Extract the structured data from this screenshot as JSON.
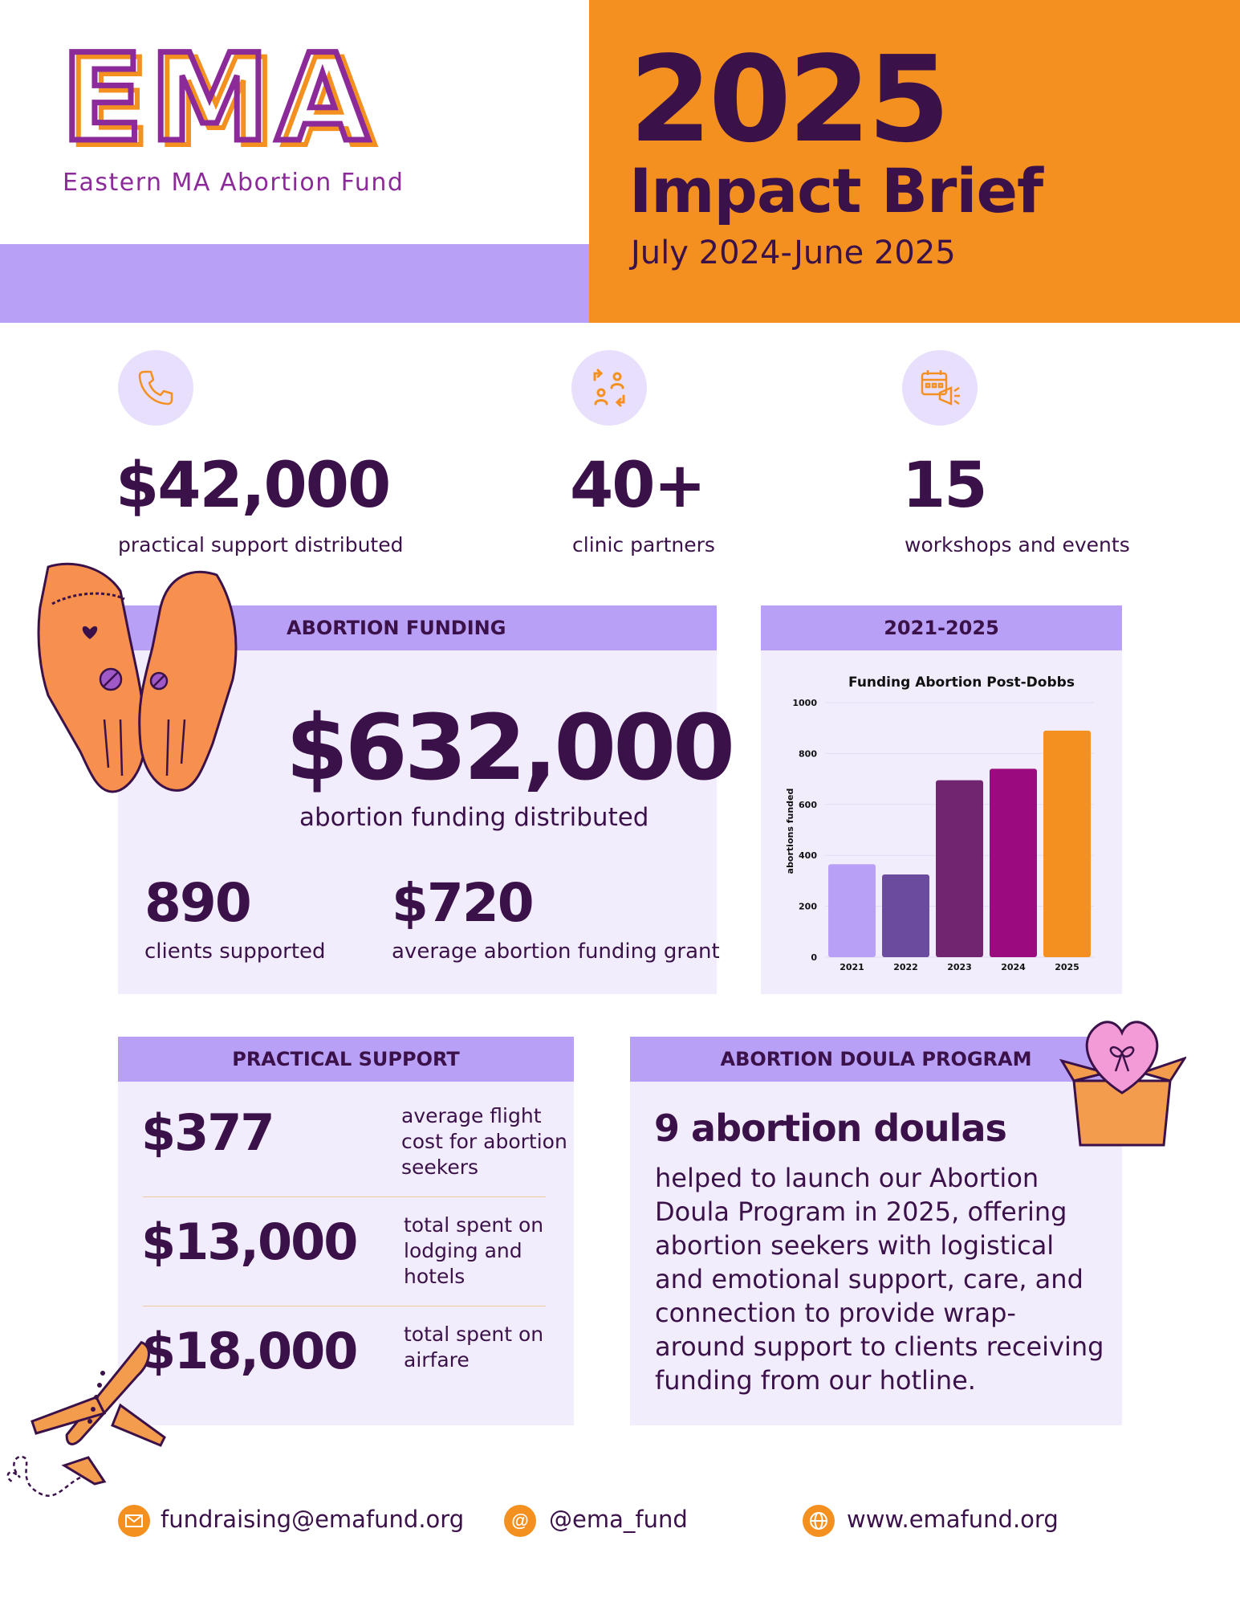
{
  "header": {
    "logo_letters": "EMA",
    "logo_subtitle": "Eastern MA Abortion Fund",
    "year": "2025",
    "title": "Impact Brief",
    "period": "July 2024-June 2025"
  },
  "stats": [
    {
      "icon": "phone-icon",
      "value": "$42,000",
      "label": "practical support distributed"
    },
    {
      "icon": "people-exchange-icon",
      "value": "40+",
      "label": "clinic partners"
    },
    {
      "icon": "calendar-megaphone-icon",
      "value": "15",
      "label": "workshops and events"
    }
  ],
  "abortion_funding": {
    "heading": "ABORTION FUNDING",
    "total": "$632,000",
    "total_label": "abortion funding distributed",
    "clients": "890",
    "clients_label": "clients supported",
    "avg_grant": "$720",
    "avg_grant_label": "average abortion funding grant"
  },
  "chart_panel": {
    "heading": "2021-2025"
  },
  "chart_data": {
    "type": "bar",
    "title": "Funding Abortion Post-Dobbs",
    "xlabel": "",
    "ylabel": "abortions funded",
    "categories": [
      "2021",
      "2022",
      "2023",
      "2024",
      "2025"
    ],
    "values": [
      365,
      325,
      695,
      740,
      890
    ],
    "colors": [
      "#b9a0f7",
      "#6b4b9e",
      "#71246f",
      "#9b0a7e",
      "#f49020"
    ],
    "ylim": [
      0,
      1000
    ],
    "yticks": [
      "0",
      "200",
      "400",
      "600",
      "800",
      "1000"
    ],
    "grid": true
  },
  "practical_support": {
    "heading": "PRACTICAL SUPPORT",
    "items": [
      {
        "value": "$377",
        "label": "average flight cost for abortion seekers"
      },
      {
        "value": "$13,000",
        "label": "total spent on lodging and hotels"
      },
      {
        "value": "$18,000",
        "label": "total spent on airfare"
      }
    ]
  },
  "doula": {
    "heading": "ABORTION DOULA PROGRAM",
    "headline": "9 abortion doulas",
    "body": "helped to launch our Abortion Doula Program in 2025, offering abortion seekers with logistical and emotional support, care, and connection to provide wrap-around support to clients receiving funding from our hotline."
  },
  "footer": {
    "email": "fundraising@emafund.org",
    "handle": "@ema_fund",
    "website": "www.emafund.org",
    "email_icon": "envelope-icon",
    "handle_icon": "at-icon",
    "website_icon": "globe-icon"
  },
  "colors": {
    "orange": "#f49020",
    "lavender": "#b9a0f7",
    "panel": "#f1edfd",
    "dark_purple": "#3b1149",
    "magenta": "#8b2a98"
  }
}
